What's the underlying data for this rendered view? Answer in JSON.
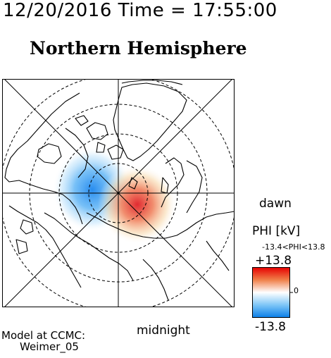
{
  "header": {
    "timestamp": "12/20/2016 Time = 17:55:00",
    "title": "Northern Hemisphere"
  },
  "map": {
    "dawn_label": "dawn",
    "midnight_label": "midnight",
    "projection": "polar",
    "coastline_color": "#000000",
    "grid_color": "#000000",
    "potential_cells": [
      {
        "name": "negative-cell",
        "color": "#1e90ff",
        "sector": "dusk"
      },
      {
        "name": "positive-cell",
        "color": "#e8232a",
        "sector": "dawn-midnight"
      }
    ]
  },
  "colorbar": {
    "title": "PHI [kV]",
    "range_text": "-13.4<PHI<13.8",
    "max_label": "+13.8",
    "zero_label": "0",
    "min_label": "-13.8",
    "colors": [
      "#e60000",
      "#ffffff",
      "#0080ff"
    ]
  },
  "model": {
    "line1": "Model at CCMC:",
    "line2": "Weimer_05"
  }
}
